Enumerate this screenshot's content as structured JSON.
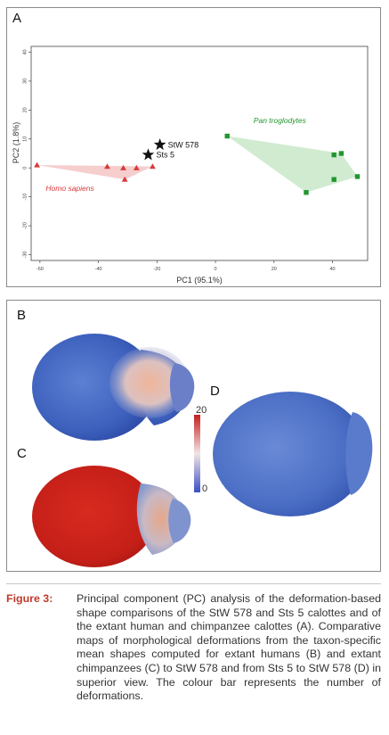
{
  "panels": {
    "a_label": "A",
    "b_label": "B",
    "c_label": "C",
    "d_label": "D"
  },
  "chart_data": {
    "type": "scatter",
    "xlabel": "PC1 (95.1%)",
    "ylabel": "PC2 (1.8%)",
    "xlim": [
      -63,
      52
    ],
    "ylim": [
      -32,
      42
    ],
    "xticks": [
      -60,
      -40,
      -20,
      0,
      20,
      40
    ],
    "yticks": [
      -30,
      -20,
      -10,
      0,
      10,
      20,
      30,
      40
    ],
    "series": [
      {
        "name": "Homo sapiens",
        "marker": "triangle",
        "color": "#d83a3a",
        "fill": "#f5c6c6",
        "points": [
          [
            -61,
            1
          ],
          [
            -37,
            0.5
          ],
          [
            -31.5,
            0
          ],
          [
            -27,
            0
          ],
          [
            -21.5,
            0.5
          ],
          [
            -31,
            -4
          ]
        ]
      },
      {
        "name": "Pan troglodytes",
        "marker": "square",
        "color": "#22962e",
        "fill": "#c9e8c9",
        "points": [
          [
            4,
            11
          ],
          [
            40.5,
            4.5
          ],
          [
            43,
            5
          ],
          [
            48.5,
            -3
          ],
          [
            40.5,
            -4
          ],
          [
            31,
            -8.5
          ]
        ]
      },
      {
        "name": "",
        "marker": "star",
        "color": "#111111",
        "points": [
          [
            -19,
            8
          ],
          [
            -23,
            4.5
          ]
        ],
        "labels": [
          "StW 578",
          "Sts 5"
        ]
      }
    ]
  },
  "colorbar": {
    "max_label": "20",
    "min_label": "0"
  },
  "caption": {
    "label": "Figure 3:",
    "text": "Principal component (PC) analysis of the deformation-based shape comparisons of the StW 578 and Sts 5 calottes and of the extant human and chimpanzee calottes (A). Comparative maps of morphological deformations from the taxon-specific mean shapes computed for extant humans (B) and extant chimpanzees (C) to StW 578 and from Sts 5 to StW 578 (D) in superior view. The colour bar represents the number of deformations."
  }
}
